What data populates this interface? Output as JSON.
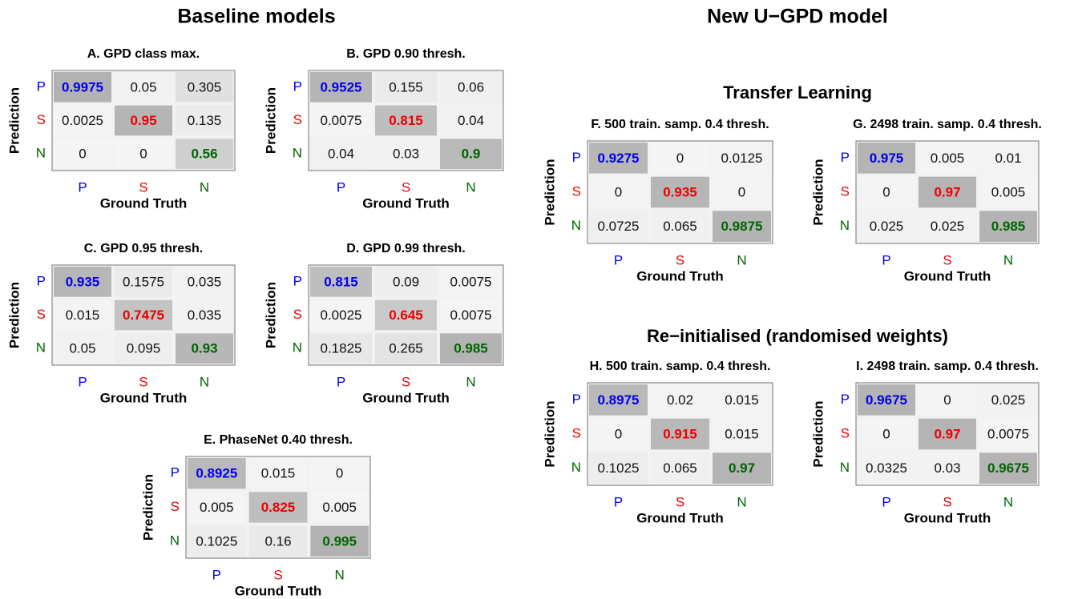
{
  "headings": {
    "left": "Baseline models",
    "right": "New U−GPD model",
    "right_top": "Transfer Learning",
    "right_bottom": "Re−initialised (randomised weights)"
  },
  "chart_data": [
    {
      "type": "heatmap",
      "title": "A. GPD class max.",
      "x_label": "Ground Truth",
      "y_label": "Prediction",
      "x_categories": [
        "P",
        "S",
        "N"
      ],
      "y_categories": [
        "P",
        "S",
        "N"
      ],
      "category_colors": [
        "#0000ee",
        "#ee0000",
        "#006400"
      ],
      "values": [
        [
          0.9975,
          0.05,
          0.305
        ],
        [
          0.0025,
          0.95,
          0.135
        ],
        [
          0,
          0,
          0.56
        ]
      ]
    },
    {
      "type": "heatmap",
      "title": "B. GPD 0.90 thresh.",
      "x_label": "Ground Truth",
      "y_label": "Prediction",
      "x_categories": [
        "P",
        "S",
        "N"
      ],
      "y_categories": [
        "P",
        "S",
        "N"
      ],
      "category_colors": [
        "#0000ee",
        "#ee0000",
        "#006400"
      ],
      "values": [
        [
          0.9525,
          0.155,
          0.06
        ],
        [
          0.0075,
          0.815,
          0.04
        ],
        [
          0.04,
          0.03,
          0.9
        ]
      ]
    },
    {
      "type": "heatmap",
      "title": "C. GPD 0.95 thresh.",
      "x_label": "Ground Truth",
      "y_label": "Prediction",
      "x_categories": [
        "P",
        "S",
        "N"
      ],
      "y_categories": [
        "P",
        "S",
        "N"
      ],
      "category_colors": [
        "#0000ee",
        "#ee0000",
        "#006400"
      ],
      "values": [
        [
          0.935,
          0.1575,
          0.035
        ],
        [
          0.015,
          0.7475,
          0.035
        ],
        [
          0.05,
          0.095,
          0.93
        ]
      ]
    },
    {
      "type": "heatmap",
      "title": "D. GPD 0.99 thresh.",
      "x_label": "Ground Truth",
      "y_label": "Prediction",
      "x_categories": [
        "P",
        "S",
        "N"
      ],
      "y_categories": [
        "P",
        "S",
        "N"
      ],
      "category_colors": [
        "#0000ee",
        "#ee0000",
        "#006400"
      ],
      "values": [
        [
          0.815,
          0.09,
          0.0075
        ],
        [
          0.0025,
          0.645,
          0.0075
        ],
        [
          0.1825,
          0.265,
          0.985
        ]
      ]
    },
    {
      "type": "heatmap",
      "title": "E. PhaseNet 0.40 thresh.",
      "x_label": "Ground Truth",
      "y_label": "Prediction",
      "x_categories": [
        "P",
        "S",
        "N"
      ],
      "y_categories": [
        "P",
        "S",
        "N"
      ],
      "category_colors": [
        "#0000ee",
        "#ee0000",
        "#006400"
      ],
      "values": [
        [
          0.8925,
          0.015,
          0
        ],
        [
          0.005,
          0.825,
          0.005
        ],
        [
          0.1025,
          0.16,
          0.995
        ]
      ]
    },
    {
      "type": "heatmap",
      "title": "F. 500 train. samp. 0.4 thresh.",
      "x_label": "Ground Truth",
      "y_label": "Prediction",
      "x_categories": [
        "P",
        "S",
        "N"
      ],
      "y_categories": [
        "P",
        "S",
        "N"
      ],
      "category_colors": [
        "#0000ee",
        "#ee0000",
        "#006400"
      ],
      "values": [
        [
          0.9275,
          0,
          0.0125
        ],
        [
          0,
          0.935,
          0
        ],
        [
          0.0725,
          0.065,
          0.9875
        ]
      ]
    },
    {
      "type": "heatmap",
      "title": "G. 2498 train. samp. 0.4 thresh.",
      "x_label": "Ground Truth",
      "y_label": "Prediction",
      "x_categories": [
        "P",
        "S",
        "N"
      ],
      "y_categories": [
        "P",
        "S",
        "N"
      ],
      "category_colors": [
        "#0000ee",
        "#ee0000",
        "#006400"
      ],
      "values": [
        [
          0.975,
          0.005,
          0.01
        ],
        [
          0,
          0.97,
          0.005
        ],
        [
          0.025,
          0.025,
          0.985
        ]
      ]
    },
    {
      "type": "heatmap",
      "title": "H. 500 train. samp. 0.4 thresh.",
      "x_label": "Ground Truth",
      "y_label": "Prediction",
      "x_categories": [
        "P",
        "S",
        "N"
      ],
      "y_categories": [
        "P",
        "S",
        "N"
      ],
      "category_colors": [
        "#0000ee",
        "#ee0000",
        "#006400"
      ],
      "values": [
        [
          0.8975,
          0.02,
          0.015
        ],
        [
          0,
          0.915,
          0.015
        ],
        [
          0.1025,
          0.065,
          0.97
        ]
      ]
    },
    {
      "type": "heatmap",
      "title": "I. 2498 train. samp. 0.4 thresh.",
      "x_label": "Ground Truth",
      "y_label": "Prediction",
      "x_categories": [
        "P",
        "S",
        "N"
      ],
      "y_categories": [
        "P",
        "S",
        "N"
      ],
      "category_colors": [
        "#0000ee",
        "#ee0000",
        "#006400"
      ],
      "values": [
        [
          0.9675,
          0,
          0.025
        ],
        [
          0,
          0.97,
          0.0075
        ],
        [
          0.0325,
          0.03,
          0.9675
        ]
      ]
    }
  ]
}
